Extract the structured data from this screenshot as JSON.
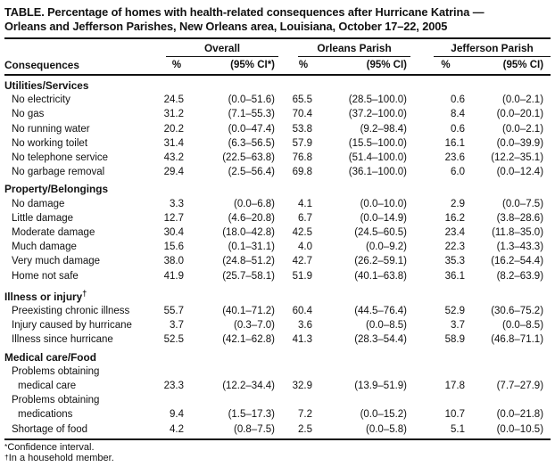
{
  "title_line1": "TABLE. Percentage of homes with health-related consequences after Hurricane Katrina —",
  "title_line2": "Orleans and Jefferson Parishes, New Orleans area, Louisiana, October 17–22, 2005",
  "table": {
    "row_header": "Consequences",
    "groups": [
      {
        "label": "Overall",
        "subcols": [
          "%",
          "(95% CI*)"
        ]
      },
      {
        "label": "Orleans Parish",
        "subcols": [
          "%",
          "(95% CI)"
        ]
      },
      {
        "label": "Jefferson Parish",
        "subcols": [
          "%",
          "(95% CI)"
        ]
      }
    ],
    "sections": [
      {
        "label": "Utilities/Services",
        "rows": [
          {
            "label": "No electricity",
            "values": [
              "24.5",
              "(0.0–51.6)",
              "65.5",
              "(28.5–100.0)",
              "0.6",
              "(0.0–2.1)"
            ]
          },
          {
            "label": "No gas",
            "values": [
              "31.2",
              "(7.1–55.3)",
              "70.4",
              "(37.2–100.0)",
              "8.4",
              "(0.0–20.1)"
            ]
          },
          {
            "label": "No running water",
            "values": [
              "20.2",
              "(0.0–47.4)",
              "53.8",
              "(9.2–98.4)",
              "0.6",
              "(0.0–2.1)"
            ]
          },
          {
            "label": "No working toilet",
            "values": [
              "31.4",
              "(6.3–56.5)",
              "57.9",
              "(15.5–100.0)",
              "16.1",
              "(0.0–39.9)"
            ]
          },
          {
            "label": "No telephone service",
            "values": [
              "43.2",
              "(22.5–63.8)",
              "76.8",
              "(51.4–100.0)",
              "23.6",
              "(12.2–35.1)"
            ]
          },
          {
            "label": "No garbage removal",
            "values": [
              "29.4",
              "(2.5–56.4)",
              "69.8",
              "(36.1–100.0)",
              "6.0",
              "(0.0–12.4)"
            ]
          }
        ]
      },
      {
        "label": "Property/Belongings",
        "rows": [
          {
            "label": "No damage",
            "values": [
              "3.3",
              "(0.0–6.8)",
              "4.1",
              "(0.0–10.0)",
              "2.9",
              "(0.0–7.5)"
            ]
          },
          {
            "label": "Little damage",
            "values": [
              "12.7",
              "(4.6–20.8)",
              "6.7",
              "(0.0–14.9)",
              "16.2",
              "(3.8–28.6)"
            ]
          },
          {
            "label": "Moderate damage",
            "values": [
              "30.4",
              "(18.0–42.8)",
              "42.5",
              "(24.5–60.5)",
              "23.4",
              "(11.8–35.0)"
            ]
          },
          {
            "label": "Much damage",
            "values": [
              "15.6",
              "(0.1–31.1)",
              "4.0",
              "(0.0–9.2)",
              "22.3",
              "(1.3–43.3)"
            ]
          },
          {
            "label": "Very much damage",
            "values": [
              "38.0",
              "(24.8–51.2)",
              "42.7",
              "(26.2–59.1)",
              "35.3",
              "(16.2–54.4)"
            ]
          },
          {
            "label": "Home not safe",
            "values": [
              "41.9",
              "(25.7–58.1)",
              "51.9",
              "(40.1–63.8)",
              "36.1",
              "(8.2–63.9)"
            ]
          }
        ]
      },
      {
        "label": "Illness or injury",
        "sup": "†",
        "rows": [
          {
            "label": "Preexisting chronic illness",
            "values": [
              "55.7",
              "(40.1–71.2)",
              "60.4",
              "(44.5–76.4)",
              "52.9",
              "(30.6–75.2)"
            ]
          },
          {
            "label": "Injury caused by hurricane",
            "values": [
              "3.7",
              "(0.3–7.0)",
              "3.6",
              "(0.0–8.5)",
              "3.7",
              "(0.0–8.5)"
            ]
          },
          {
            "label": "Illness since hurricane",
            "values": [
              "52.5",
              "(42.1–62.8)",
              "41.3",
              "(28.3–54.4)",
              "58.9",
              "(46.8–71.1)"
            ]
          }
        ]
      },
      {
        "label": "Medical care/Food",
        "rows": [
          {
            "lines": [
              "Problems obtaining",
              "medical care"
            ],
            "values": [
              "23.3",
              "(12.2–34.4)",
              "32.9",
              "(13.9–51.9)",
              "17.8",
              "(7.7–27.9)"
            ]
          },
          {
            "lines": [
              "Problems obtaining",
              "medications"
            ],
            "values": [
              "9.4",
              "(1.5–17.3)",
              "7.2",
              "(0.0–15.2)",
              "10.7",
              "(0.0–21.8)"
            ]
          },
          {
            "label": "Shortage of food",
            "values": [
              "4.2",
              "(0.8–7.5)",
              "2.5",
              "(0.0–5.8)",
              "5.1",
              "(0.0–10.5)"
            ]
          }
        ]
      }
    ]
  },
  "footnotes": [
    {
      "marker": "*",
      "text": "Confidence interval."
    },
    {
      "marker": "†",
      "text": "In a household member."
    }
  ]
}
